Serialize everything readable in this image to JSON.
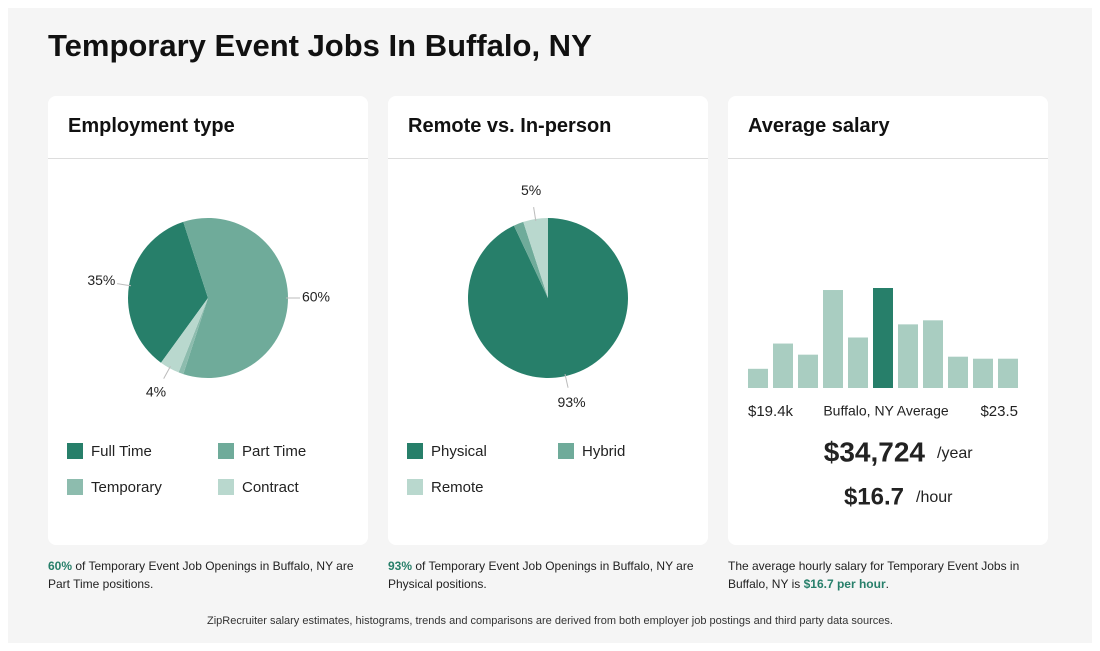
{
  "header": {
    "title": "Temporary Event Jobs In Buffalo, NY"
  },
  "cards": [
    {
      "title": "Employment type",
      "chart_data": {
        "type": "pie",
        "categories": [
          "Full Time",
          "Part Time",
          "Temporary",
          "Contract"
        ],
        "values": [
          35,
          60,
          1,
          4
        ],
        "value_labels": [
          "35%",
          "60%",
          null,
          "4%"
        ],
        "colors": [
          "#277f6a",
          "#6fab9a",
          "#8dbcae",
          "#b9d8ce"
        ]
      },
      "note": {
        "parts": [
          {
            "text": "60%",
            "emphasis": true
          },
          {
            "text": " of Temporary Event Job Openings in Buffalo, NY are Part Time positions.",
            "emphasis": false
          }
        ]
      }
    },
    {
      "title": "Remote vs. In-person",
      "chart_data": {
        "type": "pie",
        "categories": [
          "Physical",
          "Hybrid",
          "Remote"
        ],
        "values": [
          93,
          2,
          5
        ],
        "value_labels": [
          "93%",
          null,
          "5%"
        ],
        "colors": [
          "#277f6a",
          "#6fab9a",
          "#b9d8ce"
        ]
      },
      "note": {
        "parts": [
          {
            "text": "93%",
            "emphasis": true
          },
          {
            "text": " of Temporary Event Job Openings in Buffalo, NY are Physical positions.",
            "emphasis": false
          }
        ]
      }
    },
    {
      "title": "Average salary",
      "chart_data": {
        "type": "histogram",
        "values": [
          19,
          44,
          33,
          97,
          50,
          99,
          63,
          67,
          31,
          29,
          29
        ],
        "colors": [
          "#a9cdc1",
          "#a9cdc1",
          "#a9cdc1",
          "#a9cdc1",
          "#a9cdc1",
          "#277f6a",
          "#a9cdc1",
          "#a9cdc1",
          "#a9cdc1",
          "#a9cdc1",
          "#a9cdc1"
        ],
        "min_label": "$19.4k",
        "center_label": "Buffalo, NY Average",
        "max_label": "$23.5",
        "annual": "$34,724",
        "annual_unit": "/year",
        "hourly": "$16.7",
        "hourly_unit": "/hour"
      },
      "note": {
        "parts": [
          {
            "text": "The average hourly salary for Temporary Event Jobs in Buffalo, NY is ",
            "emphasis": false
          },
          {
            "text": "$16.7 per hour",
            "emphasis": true
          },
          {
            "text": ".",
            "emphasis": false
          }
        ]
      }
    }
  ],
  "footer": {
    "text": "ZipRecruiter salary estimates, histograms, trends and comparisons are derived from both employer job postings and third party data sources."
  }
}
